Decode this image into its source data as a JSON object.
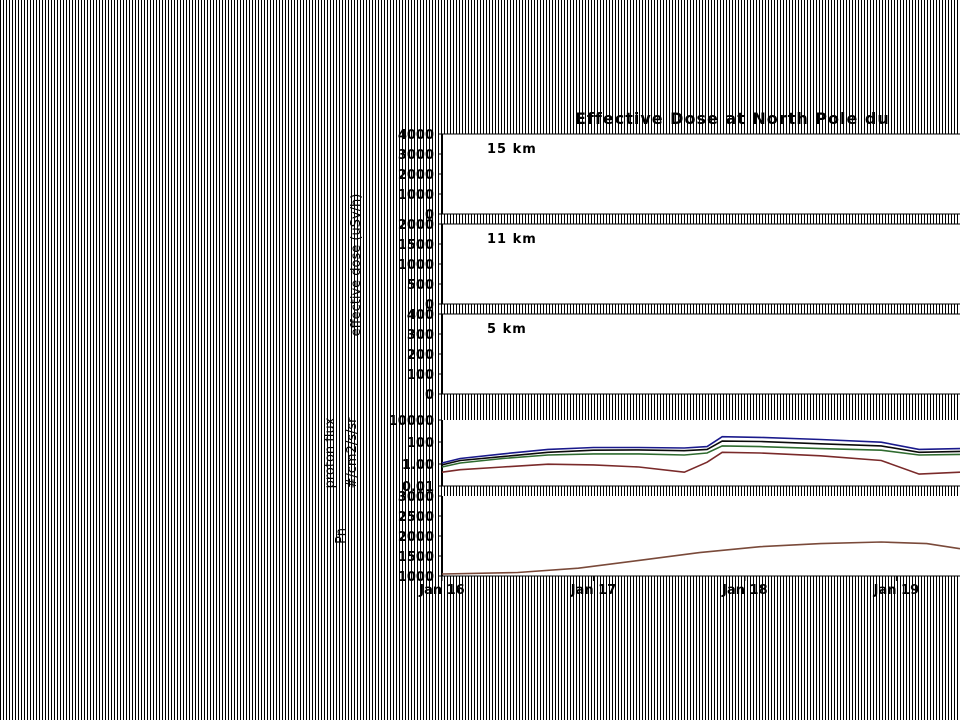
{
  "chart_data": {
    "type": "line",
    "title": "Effective Dose at North Pole du",
    "ylabel": "effective dose (uSv/h)",
    "x_ticks": [
      "Jan 16",
      "Jan 17",
      "Jan 18",
      "Jan 19"
    ],
    "x_range": [
      0,
      3.42
    ],
    "panels": [
      {
        "label": "15 km",
        "ticks": [
          "4000",
          "3000",
          "2000",
          "1000",
          "0"
        ],
        "ylim": [
          0,
          4000
        ],
        "series": []
      },
      {
        "label": "11 km",
        "ticks": [
          "2000",
          "1500",
          "1000",
          "500",
          "0"
        ],
        "ylim": [
          0,
          2000
        ],
        "series": []
      },
      {
        "label": "5 km",
        "ticks": [
          "400",
          "300",
          "200",
          "100",
          "0"
        ],
        "ylim": [
          0,
          400
        ],
        "series": []
      },
      {
        "ylabel_lines": [
          "proton flux",
          "#/cm2/s/sr"
        ],
        "ticks": [
          "10000",
          "100",
          "1.00",
          "0.01"
        ],
        "scale": "log",
        "ylim": [
          0.0025,
          40000
        ],
        "series": [
          {
            "color": "#1a1a8c",
            "x": [
              0,
              0.12,
              0.4,
              0.7,
              1,
              1.3,
              1.6,
              1.75,
              1.85,
              2.1,
              2.5,
              2.9,
              3.15,
              3.42
            ],
            "y": [
              0.8,
              2.5,
              8,
              25,
              40,
              40,
              35,
              50,
              600,
              500,
              300,
              150,
              25,
              30
            ]
          },
          {
            "color": "#0a0a0a",
            "x": [
              0,
              0.12,
              0.4,
              0.7,
              1,
              1.3,
              1.6,
              1.75,
              1.85,
              2.1,
              2.5,
              2.9,
              3.15,
              3.42
            ],
            "y": [
              0.5,
              1.5,
              4,
              12,
              20,
              22,
              18,
              25,
              200,
              180,
              100,
              60,
              12,
              15
            ]
          },
          {
            "color": "#2f6b2f",
            "x": [
              0,
              0.12,
              0.4,
              0.7,
              1,
              1.3,
              1.6,
              1.75,
              1.85,
              2.1,
              2.5,
              2.9,
              3.15,
              3.42
            ],
            "y": [
              0.3,
              0.8,
              2.5,
              6,
              8,
              8,
              6,
              10,
              60,
              50,
              30,
              20,
              6,
              7
            ]
          },
          {
            "color": "#7a2a2a",
            "x": [
              0,
              0.12,
              0.4,
              0.7,
              1,
              1.3,
              1.6,
              1.75,
              1.85,
              2.1,
              2.5,
              2.9,
              3.15,
              3.42
            ],
            "y": [
              0.08,
              0.15,
              0.3,
              0.6,
              0.5,
              0.3,
              0.08,
              1,
              12,
              10,
              5,
              1.5,
              0.05,
              0.08
            ]
          }
        ]
      },
      {
        "ylabel_lines": [
          "Pn"
        ],
        "ticks": [
          "3000",
          "2500",
          "2000",
          "1500",
          "1000"
        ],
        "scale": "linear",
        "ylim": [
          950,
          3000
        ],
        "series": [
          {
            "color": "#7a4a3a",
            "x": [
              0,
              0.5,
              0.9,
              1.3,
              1.7,
              2.1,
              2.5,
              2.9,
              3.2,
              3.42
            ],
            "y": [
              1000,
              1040,
              1150,
              1350,
              1550,
              1700,
              1780,
              1820,
              1780,
              1650
            ]
          }
        ]
      }
    ]
  }
}
